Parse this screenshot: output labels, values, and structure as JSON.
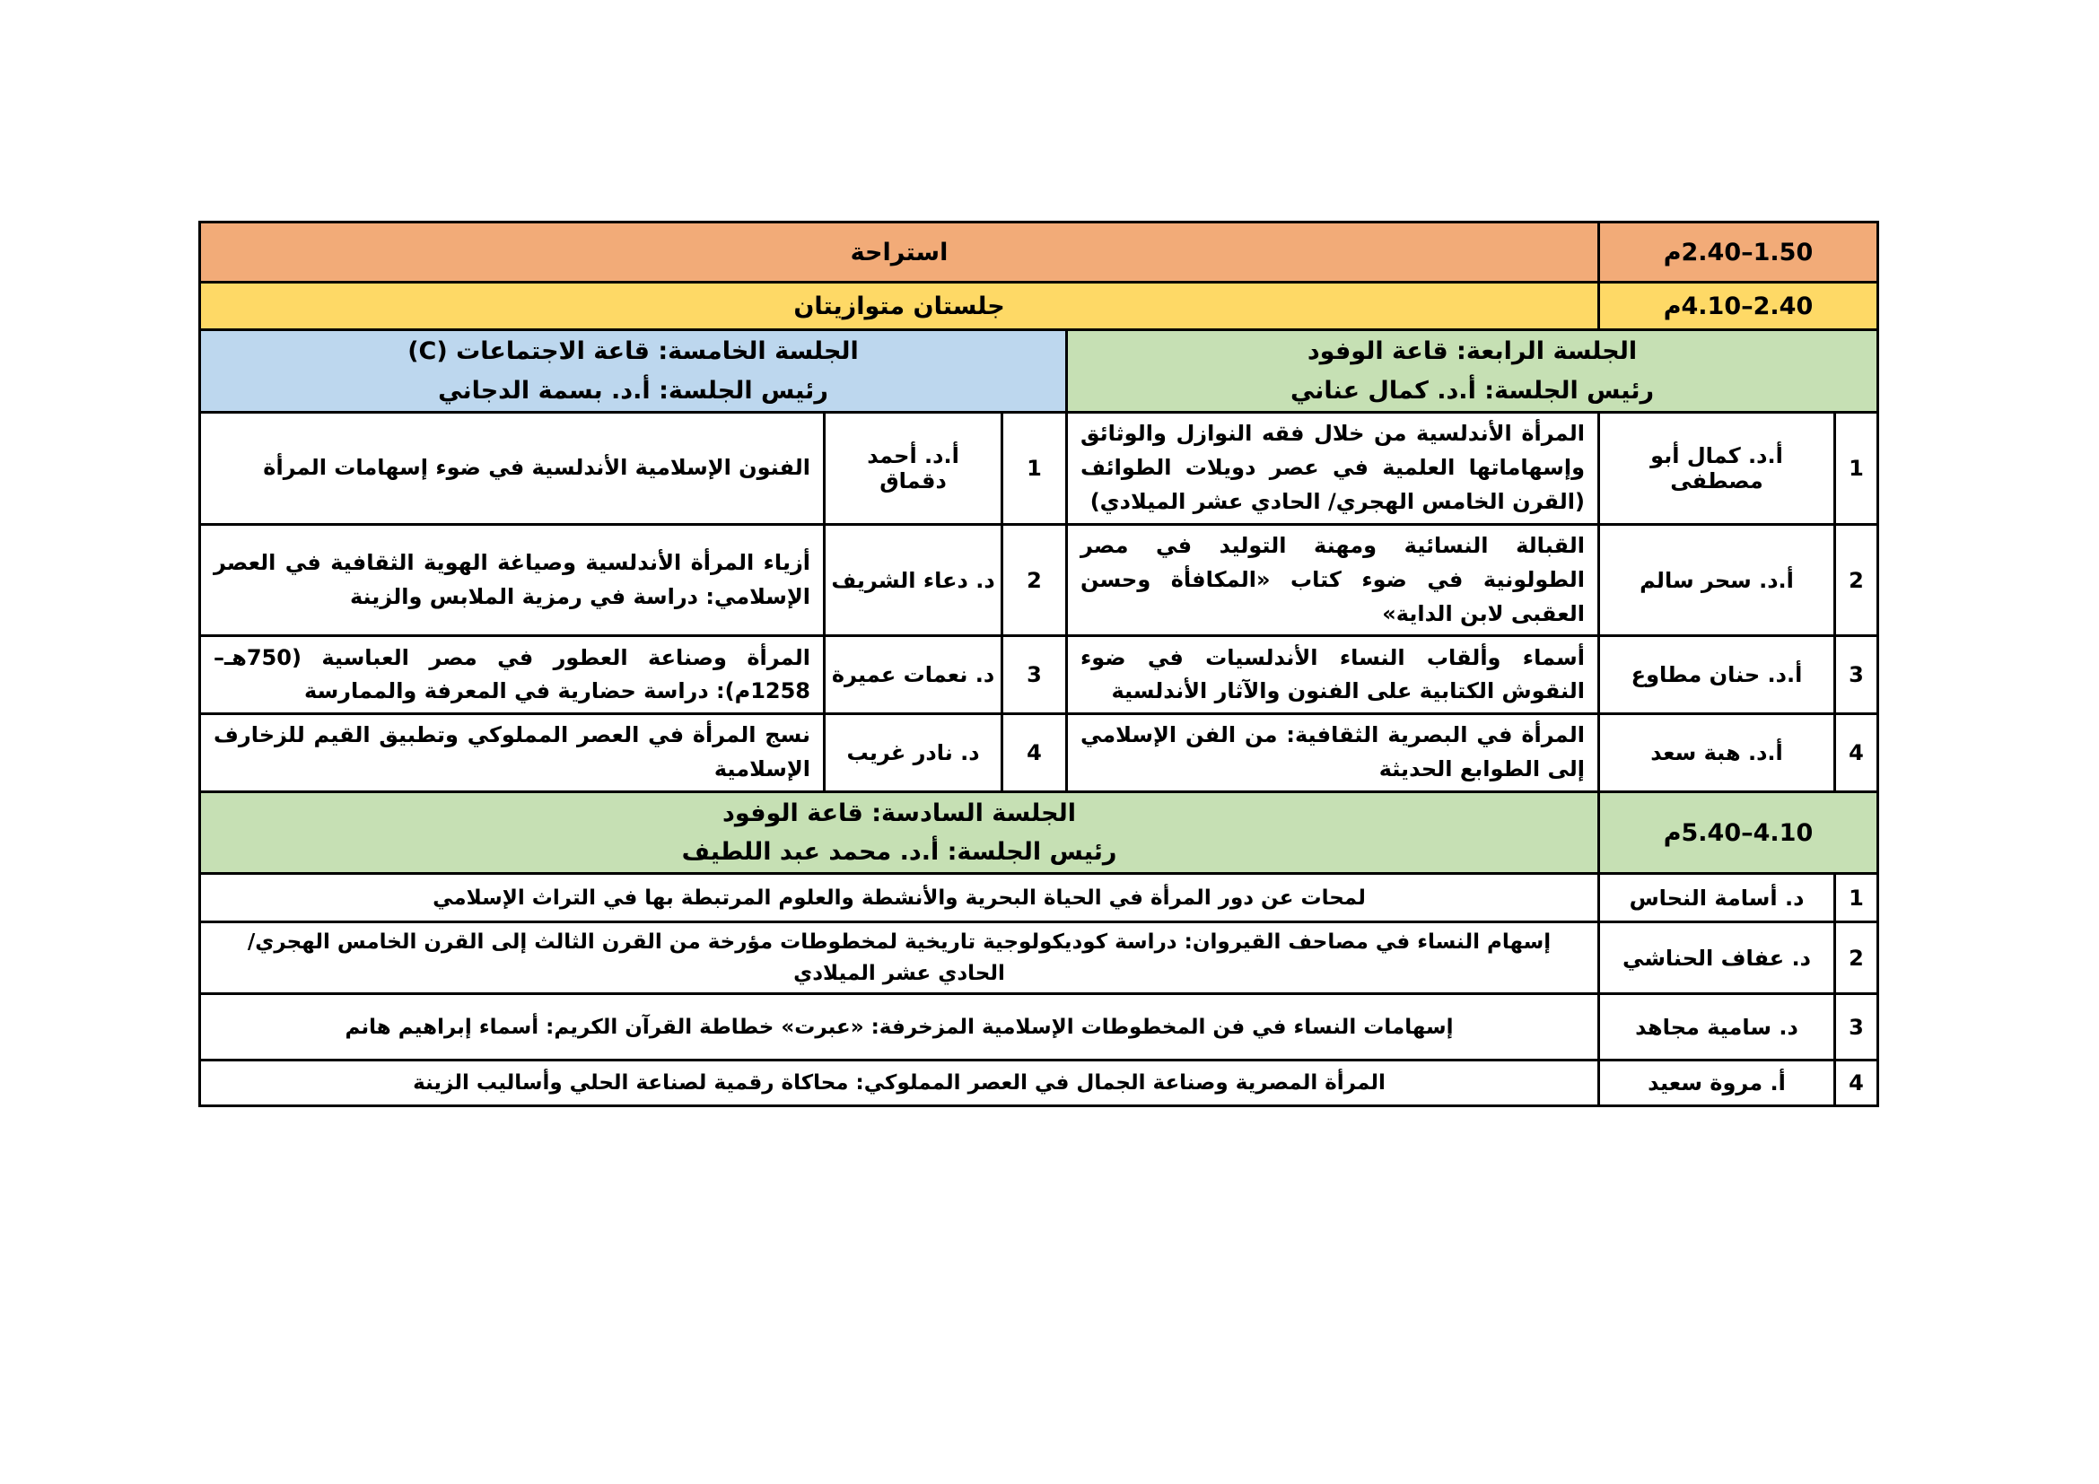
{
  "colors": {
    "break_row": "#F2AB78",
    "parallel_row": "#FED966",
    "session_green": "#C6E0B4",
    "session_blue": "#BDD7EE",
    "border": "#000000",
    "page_background": "#FFFFFF"
  },
  "break_row": {
    "label": "استراحة",
    "time": "1.50–2.40م"
  },
  "parallel_row": {
    "label": "جلستان متوازيتان",
    "time": "2.40–4.10م"
  },
  "session4": {
    "header_line1": "الجلسة الرابعة: قاعة الوفود",
    "header_line2": "رئيس الجلسة: أ.د. كمال عناني",
    "items": [
      {
        "num": "1",
        "title": "المرأة الأندلسية من خلال فقه النوازل والوثائق وإسهاماتها العلمية في عصر دويلات الطوائف (القرن الخامس الهجري/ الحادي عشر الميلادي)",
        "speaker": "أ.د. كمال أبو مصطفى"
      },
      {
        "num": "2",
        "title": "القبالة النسائية ومهنة التوليد في مصر الطولونية في ضوء كتاب «المكافأة وحسن العقبى لابن الداية»",
        "speaker": "أ.د. سحر سالم"
      },
      {
        "num": "3",
        "title": "أسماء وألقاب النساء الأندلسيات في ضوء النقوش الكتابية على الفنون والآثار الأندلسية",
        "speaker": "أ.د. حنان مطاوع"
      },
      {
        "num": "4",
        "title": "المرأة في البصرية الثقافية: من الفن الإسلامي إلى الطوابع الحديثة",
        "speaker": "أ.د. هبة سعد"
      }
    ]
  },
  "session5": {
    "header_line1": "الجلسة الخامسة: قاعة الاجتماعات (C)",
    "header_line2": "رئيس الجلسة: أ.د. بسمة الدجاني",
    "items": [
      {
        "num": "1",
        "title": "الفنون الإسلامية الأندلسية في ضوء إسهامات المرأة",
        "speaker": "أ.د. أحمد دقماق"
      },
      {
        "num": "2",
        "title": "أزياء المرأة الأندلسية وصياغة الهوية الثقافية في العصر الإسلامي: دراسة في رمزية الملابس والزينة",
        "speaker": "د. دعاء الشريف"
      },
      {
        "num": "3",
        "title": "المرأة وصناعة العطور في مصر العباسية (750هـ–1258م): دراسة حضارية في المعرفة والممارسة",
        "speaker": "د. نعمات عميرة"
      },
      {
        "num": "4",
        "title": "نسج المرأة في العصر المملوكي وتطبيق القيم للزخارف الإسلامية",
        "speaker": "د. نادر غريب"
      }
    ]
  },
  "session6": {
    "header_line1": "الجلسة السادسة: قاعة الوفود",
    "header_line2": "رئيس الجلسة: أ.د. محمد عبد اللطيف",
    "time": "4.10–5.40م",
    "items": [
      {
        "num": "1",
        "title": "لمحات عن دور المرأة في الحياة البحرية والأنشطة والعلوم المرتبطة بها في التراث الإسلامي",
        "speaker": "د. أسامة النحاس"
      },
      {
        "num": "2",
        "title": "إسهام النساء في مصاحف القيروان: دراسة كوديكولوجية تاريخية لمخطوطات مؤرخة من القرن الثالث إلى القرن الخامس الهجري/ الحادي عشر الميلادي",
        "speaker": "د. عفاف الحناشي"
      },
      {
        "num": "3",
        "title": "إسهامات النساء في فن المخطوطات الإسلامية المزخرفة: «عبرت» خطاطة القرآن الكريم: أسماء إبراهيم هانم",
        "speaker": "د. سامية مجاهد"
      },
      {
        "num": "4",
        "title": "المرأة المصرية وصناعة الجمال في العصر المملوكي: محاكاة رقمية لصناعة الحلي وأساليب الزينة",
        "speaker": "أ. مروة سعيد"
      }
    ]
  }
}
